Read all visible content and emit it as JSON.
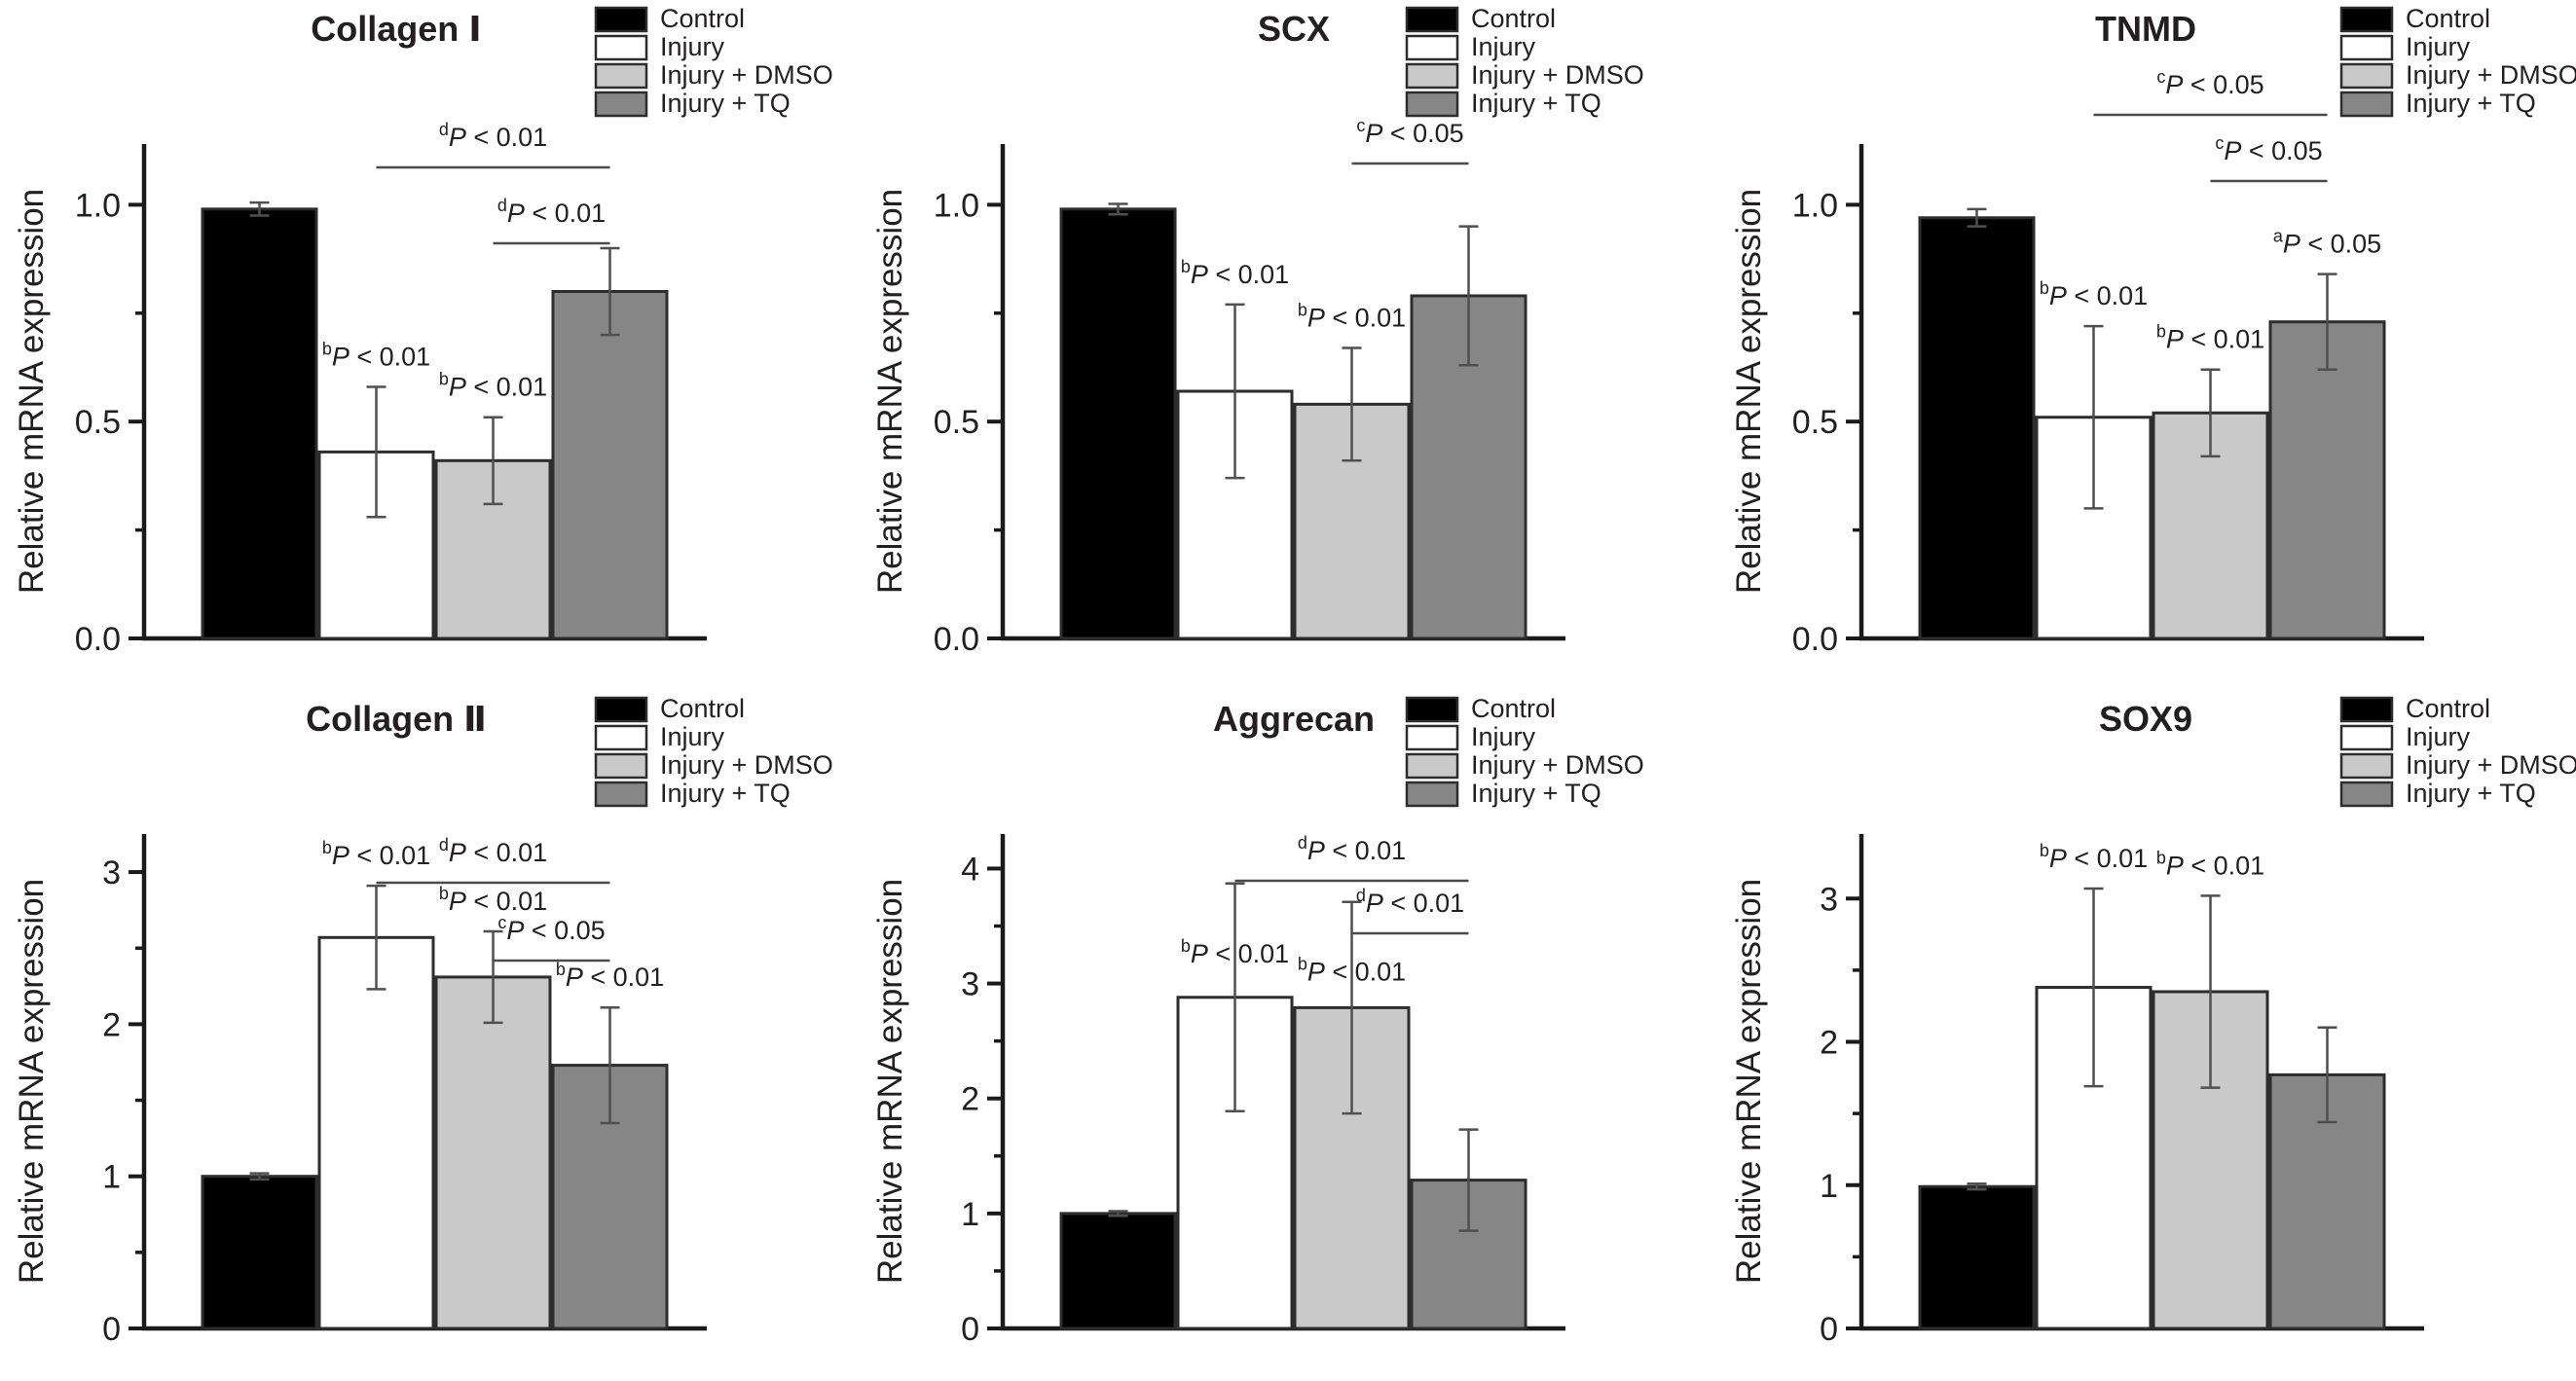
{
  "figure": {
    "ylabel": "Relative mRNA expression",
    "legend": {
      "items": [
        {
          "label": "Control",
          "color": "#000000"
        },
        {
          "label": "Injury",
          "color": "#ffffff"
        },
        {
          "label": "Injury + DMSO",
          "color": "#c9c9c9"
        },
        {
          "label": "Injury + TQ",
          "color": "#868686"
        }
      ]
    },
    "colors": {
      "bar_border": "#2d2d2d",
      "axis": "#1a1a1a",
      "error_bar": "#4f4f4f",
      "bracket_line": "#4a4a4a",
      "text": "#231f20",
      "background": "#ffffff"
    }
  },
  "chart_data": [
    {
      "id": "collagen-1",
      "type": "bar",
      "title": "Collagen Ⅰ",
      "ylabel": "Relative mRNA expression",
      "categories": [
        "Control",
        "Injury",
        "Injury + DMSO",
        "Injury + TQ"
      ],
      "values": [
        0.99,
        0.43,
        0.41,
        0.8
      ],
      "errors": [
        0.015,
        0.15,
        0.1,
        0.1
      ],
      "ylim": [
        0,
        1.14
      ],
      "yticks": [
        0.0,
        0.5,
        1.0
      ],
      "ytick_labels": [
        "0.0",
        "0.5",
        "1.0"
      ],
      "minor_ticks": [
        0.25,
        0.75
      ],
      "annotations": [
        {
          "bar": 1,
          "sup": "b",
          "text": "P < 0.01"
        },
        {
          "bar": 2,
          "sup": "b",
          "text": "P < 0.01"
        }
      ],
      "brackets": [
        {
          "from": 1,
          "to": 3,
          "sup": "d",
          "text": "P < 0.01"
        },
        {
          "from": 2,
          "to": 3,
          "sup": "d",
          "text": "P < 0.01"
        }
      ]
    },
    {
      "id": "scx",
      "type": "bar",
      "title": "SCX",
      "ylabel": "Relative mRNA expression",
      "categories": [
        "Control",
        "Injury",
        "Injury + DMSO",
        "Injury + TQ"
      ],
      "values": [
        0.99,
        0.57,
        0.54,
        0.79
      ],
      "errors": [
        0.012,
        0.2,
        0.13,
        0.16
      ],
      "ylim": [
        0,
        1.14
      ],
      "yticks": [
        0.0,
        0.5,
        1.0
      ],
      "ytick_labels": [
        "0.0",
        "0.5",
        "1.0"
      ],
      "minor_ticks": [
        0.25,
        0.75
      ],
      "annotations": [
        {
          "bar": 1,
          "sup": "b",
          "text": "P < 0.01"
        },
        {
          "bar": 2,
          "sup": "b",
          "text": "P < 0.01"
        }
      ],
      "brackets": [
        {
          "from": 2,
          "to": 3,
          "sup": "c",
          "text": "P < 0.05"
        }
      ]
    },
    {
      "id": "tnmd",
      "type": "bar",
      "title": "TNMD",
      "ylabel": "Relative mRNA expression",
      "categories": [
        "Control",
        "Injury",
        "Injury + DMSO",
        "Injury + TQ"
      ],
      "values": [
        0.97,
        0.51,
        0.52,
        0.73
      ],
      "errors": [
        0.02,
        0.21,
        0.1,
        0.11
      ],
      "ylim": [
        0,
        1.14
      ],
      "yticks": [
        0.0,
        0.5,
        1.0
      ],
      "ytick_labels": [
        "0.0",
        "0.5",
        "1.0"
      ],
      "minor_ticks": [
        0.25,
        0.75
      ],
      "annotations": [
        {
          "bar": 1,
          "sup": "b",
          "text": "P < 0.01"
        },
        {
          "bar": 2,
          "sup": "b",
          "text": "P < 0.01"
        },
        {
          "bar": 3,
          "sup": "a",
          "text": "P < 0.05"
        }
      ],
      "brackets": [
        {
          "from": 1,
          "to": 3,
          "sup": "c",
          "text": "P < 0.05"
        },
        {
          "from": 2,
          "to": 3,
          "sup": "c",
          "text": "P < 0.05"
        }
      ]
    },
    {
      "id": "collagen-2",
      "type": "bar",
      "title": "Collagen Ⅱ",
      "ylabel": "Relative mRNA expression",
      "categories": [
        "Control",
        "Injury",
        "Injury + DMSO",
        "Injury + TQ"
      ],
      "values": [
        1.0,
        2.57,
        2.31,
        1.73
      ],
      "errors": [
        0.02,
        0.34,
        0.3,
        0.38
      ],
      "ylim": [
        0,
        3.25
      ],
      "yticks": [
        0,
        1,
        2,
        3
      ],
      "ytick_labels": [
        "0",
        "1",
        "2",
        "3"
      ],
      "minor_ticks": [
        0.5,
        1.5,
        2.5
      ],
      "annotations": [
        {
          "bar": 1,
          "sup": "b",
          "text": "P < 0.01"
        },
        {
          "bar": 2,
          "sup": "b",
          "text": "P < 0.01"
        },
        {
          "bar": 3,
          "sup": "b",
          "text": "P < 0.01"
        }
      ],
      "brackets": [
        {
          "from": 1,
          "to": 3,
          "sup": "d",
          "text": "P < 0.01"
        },
        {
          "from": 2,
          "to": 3,
          "sup": "c",
          "text": "P < 0.05"
        }
      ]
    },
    {
      "id": "aggrecan",
      "type": "bar",
      "title": "Aggrecan",
      "ylabel": "Relative mRNA expression",
      "categories": [
        "Control",
        "Injury",
        "Injury + DMSO",
        "Injury + TQ"
      ],
      "values": [
        1.0,
        2.88,
        2.79,
        1.29
      ],
      "errors": [
        0.02,
        0.99,
        0.92,
        0.44
      ],
      "ylim": [
        0,
        4.3
      ],
      "yticks": [
        0,
        1,
        2,
        3,
        4
      ],
      "ytick_labels": [
        "0",
        "1",
        "2",
        "3",
        "4"
      ],
      "minor_ticks": [
        0.5,
        1.5,
        2.5,
        3.5
      ],
      "annotations": [
        {
          "bar": 1,
          "sup": "b",
          "text": "P < 0.01"
        },
        {
          "bar": 2,
          "sup": "b",
          "text": "P < 0.01"
        }
      ],
      "brackets": [
        {
          "from": 1,
          "to": 3,
          "sup": "d",
          "text": "P < 0.01"
        },
        {
          "from": 2,
          "to": 3,
          "sup": "d",
          "text": "P < 0.01"
        }
      ]
    },
    {
      "id": "sox9",
      "type": "bar",
      "title": "SOX9",
      "ylabel": "Relative mRNA expression",
      "categories": [
        "Control",
        "Injury",
        "Injury + DMSO",
        "Injury + TQ"
      ],
      "values": [
        0.99,
        2.38,
        2.35,
        1.77
      ],
      "errors": [
        0.02,
        0.69,
        0.67,
        0.33
      ],
      "ylim": [
        0,
        3.45
      ],
      "yticks": [
        0,
        1,
        2,
        3
      ],
      "ytick_labels": [
        "0",
        "1",
        "2",
        "3"
      ],
      "minor_ticks": [
        0.5,
        1.5,
        2.5
      ],
      "annotations": [
        {
          "bar": 1,
          "sup": "b",
          "text": "P < 0.01"
        },
        {
          "bar": 2,
          "sup": "b",
          "text": "P < 0.01"
        }
      ],
      "brackets": []
    }
  ]
}
